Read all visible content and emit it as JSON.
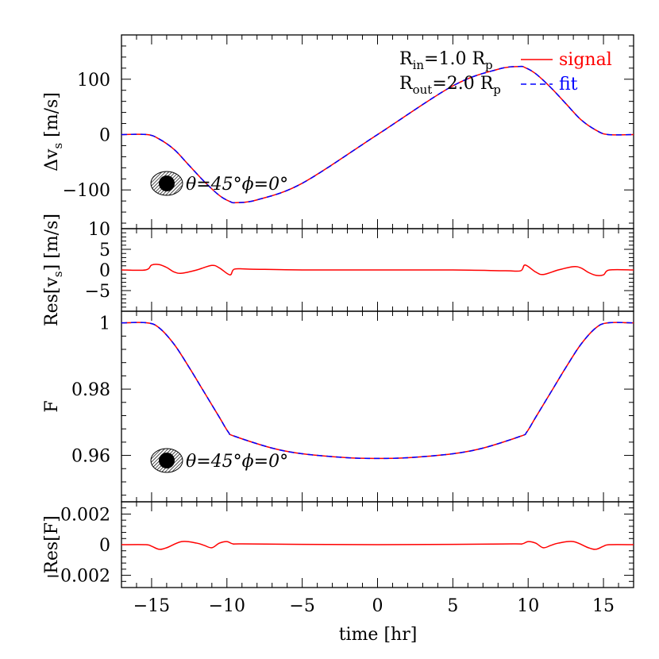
{
  "chart_data": {
    "type": "line",
    "xlabel": "time [hr]",
    "xlim": [
      -17,
      17
    ],
    "xticks": [
      -15,
      -10,
      -5,
      0,
      5,
      10,
      15
    ],
    "legend": {
      "position": "top-right",
      "params": [
        {
          "main": "R",
          "sub": "in",
          "mid": "=1.0  R",
          "sub2": "p"
        },
        {
          "main": "R",
          "sub": "out",
          "mid": "=2.0  R",
          "sub2": "p"
        }
      ],
      "entries": [
        {
          "label": "signal",
          "color": "#ff0000",
          "dash": "solid"
        },
        {
          "label": "fit",
          "color": "#0000ff",
          "dash": "dashed"
        }
      ]
    },
    "annotation": "θ=45°ϕ=0°",
    "panels": [
      {
        "id": "vs",
        "ylabel_main": "Δv",
        "ylabel_sub": "s",
        "ylabel_rest": " [m/s]",
        "ylim": [
          -170,
          180
        ],
        "yticks": [
          100,
          0,
          -100
        ],
        "series": [
          {
            "name": "signal",
            "color": "#ff0000",
            "x": [
              -17,
              -15.3,
              -14.5,
              -13.5,
              -12.5,
              -11.5,
              -10.5,
              -9.8,
              -9.4,
              -8,
              -5,
              0,
              5,
              8,
              9.4,
              9.8,
              10.5,
              11.5,
              12.5,
              13.5,
              14.5,
              15.3,
              17
            ],
            "y": [
              0,
              0,
              -8,
              -27,
              -56,
              -85,
              -110,
              -121,
              -123,
              -118,
              -88,
              0,
              88,
              118,
              123,
              121,
              110,
              85,
              56,
              27,
              8,
              0,
              0
            ]
          },
          {
            "name": "fit",
            "color": "#0000ff",
            "x": [
              -17,
              -15.3,
              -14.5,
              -13.5,
              -12.5,
              -11.5,
              -10.5,
              -9.8,
              -9.4,
              -8,
              -5,
              0,
              5,
              8,
              9.4,
              9.8,
              10.5,
              11.5,
              12.5,
              13.5,
              14.5,
              15.3,
              17
            ],
            "y": [
              0,
              0,
              -8,
              -27,
              -56,
              -85,
              -110,
              -121,
              -123,
              -118,
              -88,
              0,
              88,
              118,
              123,
              121,
              110,
              85,
              56,
              27,
              8,
              0,
              0
            ]
          }
        ]
      },
      {
        "id": "res_vs",
        "ylabel_main": "Res[v",
        "ylabel_sub": "s",
        "ylabel_rest": "] [m/s]",
        "ylim": [
          -10,
          10
        ],
        "yticks": [
          10,
          5,
          0,
          -5
        ],
        "series": [
          {
            "name": "signal",
            "color": "#ff0000",
            "x": [
              -17,
              -15.4,
              -15,
              -14.5,
              -14,
              -13.5,
              -13,
              -12,
              -11,
              -10.5,
              -9.8,
              -9.5,
              -8.5,
              -5,
              0,
              5,
              8.5,
              9.5,
              9.8,
              10.5,
              11,
              12,
              13,
              13.5,
              14,
              14.5,
              15,
              15.4,
              17
            ],
            "y": [
              0,
              0,
              1.2,
              1.3,
              0.6,
              -0.5,
              -0.8,
              0,
              1.1,
              0.5,
              -1.2,
              0.2,
              0.2,
              0,
              0,
              0,
              -0.2,
              -0.2,
              1.2,
              -0.5,
              -1.1,
              0,
              0.8,
              0.5,
              -0.6,
              -1.3,
              -1.2,
              0,
              0
            ]
          }
        ]
      },
      {
        "id": "flux",
        "ylabel_main": "F",
        "ylabel_sub": "",
        "ylabel_rest": "",
        "ylim": [
          0.946,
          1.0035
        ],
        "yticks": [
          1,
          0.98,
          0.96
        ],
        "series": [
          {
            "name": "signal",
            "color": "#ff0000",
            "x": [
              -17,
              -15.3,
              -14.5,
              -13.5,
              -12.5,
              -11.5,
              -10.5,
              -9.9,
              -9.5,
              -7,
              -5,
              -2,
              0,
              2,
              5,
              7,
              9.5,
              9.9,
              10.5,
              11.5,
              12.5,
              13.5,
              14.5,
              15.3,
              17
            ],
            "y": [
              1,
              1,
              0.9985,
              0.9935,
              0.9865,
              0.979,
              0.9715,
              0.967,
              0.9658,
              0.9622,
              0.9605,
              0.9593,
              0.9591,
              0.9593,
              0.9605,
              0.9622,
              0.9658,
              0.967,
              0.9715,
              0.979,
              0.9865,
              0.9935,
              0.9985,
              1,
              1
            ]
          },
          {
            "name": "fit",
            "color": "#0000ff",
            "x": [
              -17,
              -15.3,
              -14.5,
              -13.5,
              -12.5,
              -11.5,
              -10.5,
              -9.9,
              -9.5,
              -7,
              -5,
              -2,
              0,
              2,
              5,
              7,
              9.5,
              9.9,
              10.5,
              11.5,
              12.5,
              13.5,
              14.5,
              15.3,
              17
            ],
            "y": [
              1,
              1,
              0.9985,
              0.9935,
              0.9865,
              0.979,
              0.9715,
              0.967,
              0.9658,
              0.9622,
              0.9605,
              0.9593,
              0.9591,
              0.9593,
              0.9605,
              0.9622,
              0.9658,
              0.967,
              0.9715,
              0.979,
              0.9865,
              0.9935,
              0.9985,
              1,
              1
            ]
          }
        ]
      },
      {
        "id": "res_f",
        "ylabel_main": "Res[F]",
        "ylabel_sub": "",
        "ylabel_rest": "",
        "ylim": [
          -0.0028,
          0.0028
        ],
        "yticks": [
          0.002,
          0,
          -0.002
        ],
        "yticklabels": [
          "0.002",
          "0",
          "−0.002"
        ],
        "series": [
          {
            "name": "signal",
            "color": "#ff0000",
            "x": [
              -17,
              -15.4,
              -15,
              -14.5,
              -14,
              -13,
              -12,
              -11.5,
              -11,
              -10.5,
              -10,
              -9.6,
              -9,
              -5,
              0,
              5,
              9,
              9.6,
              10,
              10.5,
              11,
              11.5,
              12,
              13,
              14,
              14.5,
              15,
              15.4,
              17
            ],
            "y": [
              0,
              0,
              -0.0001,
              -0.0003,
              -0.0002,
              0.0002,
              0.0001,
              -5e-05,
              -0.0002,
              0.0001,
              0.0002,
              5e-05,
              5e-05,
              2e-05,
              0,
              2e-05,
              5e-05,
              5e-05,
              0.0002,
              0.0001,
              -0.0002,
              -5e-05,
              0.0001,
              0.0002,
              -0.0002,
              -0.0003,
              -0.0001,
              0,
              0
            ]
          }
        ]
      }
    ]
  }
}
